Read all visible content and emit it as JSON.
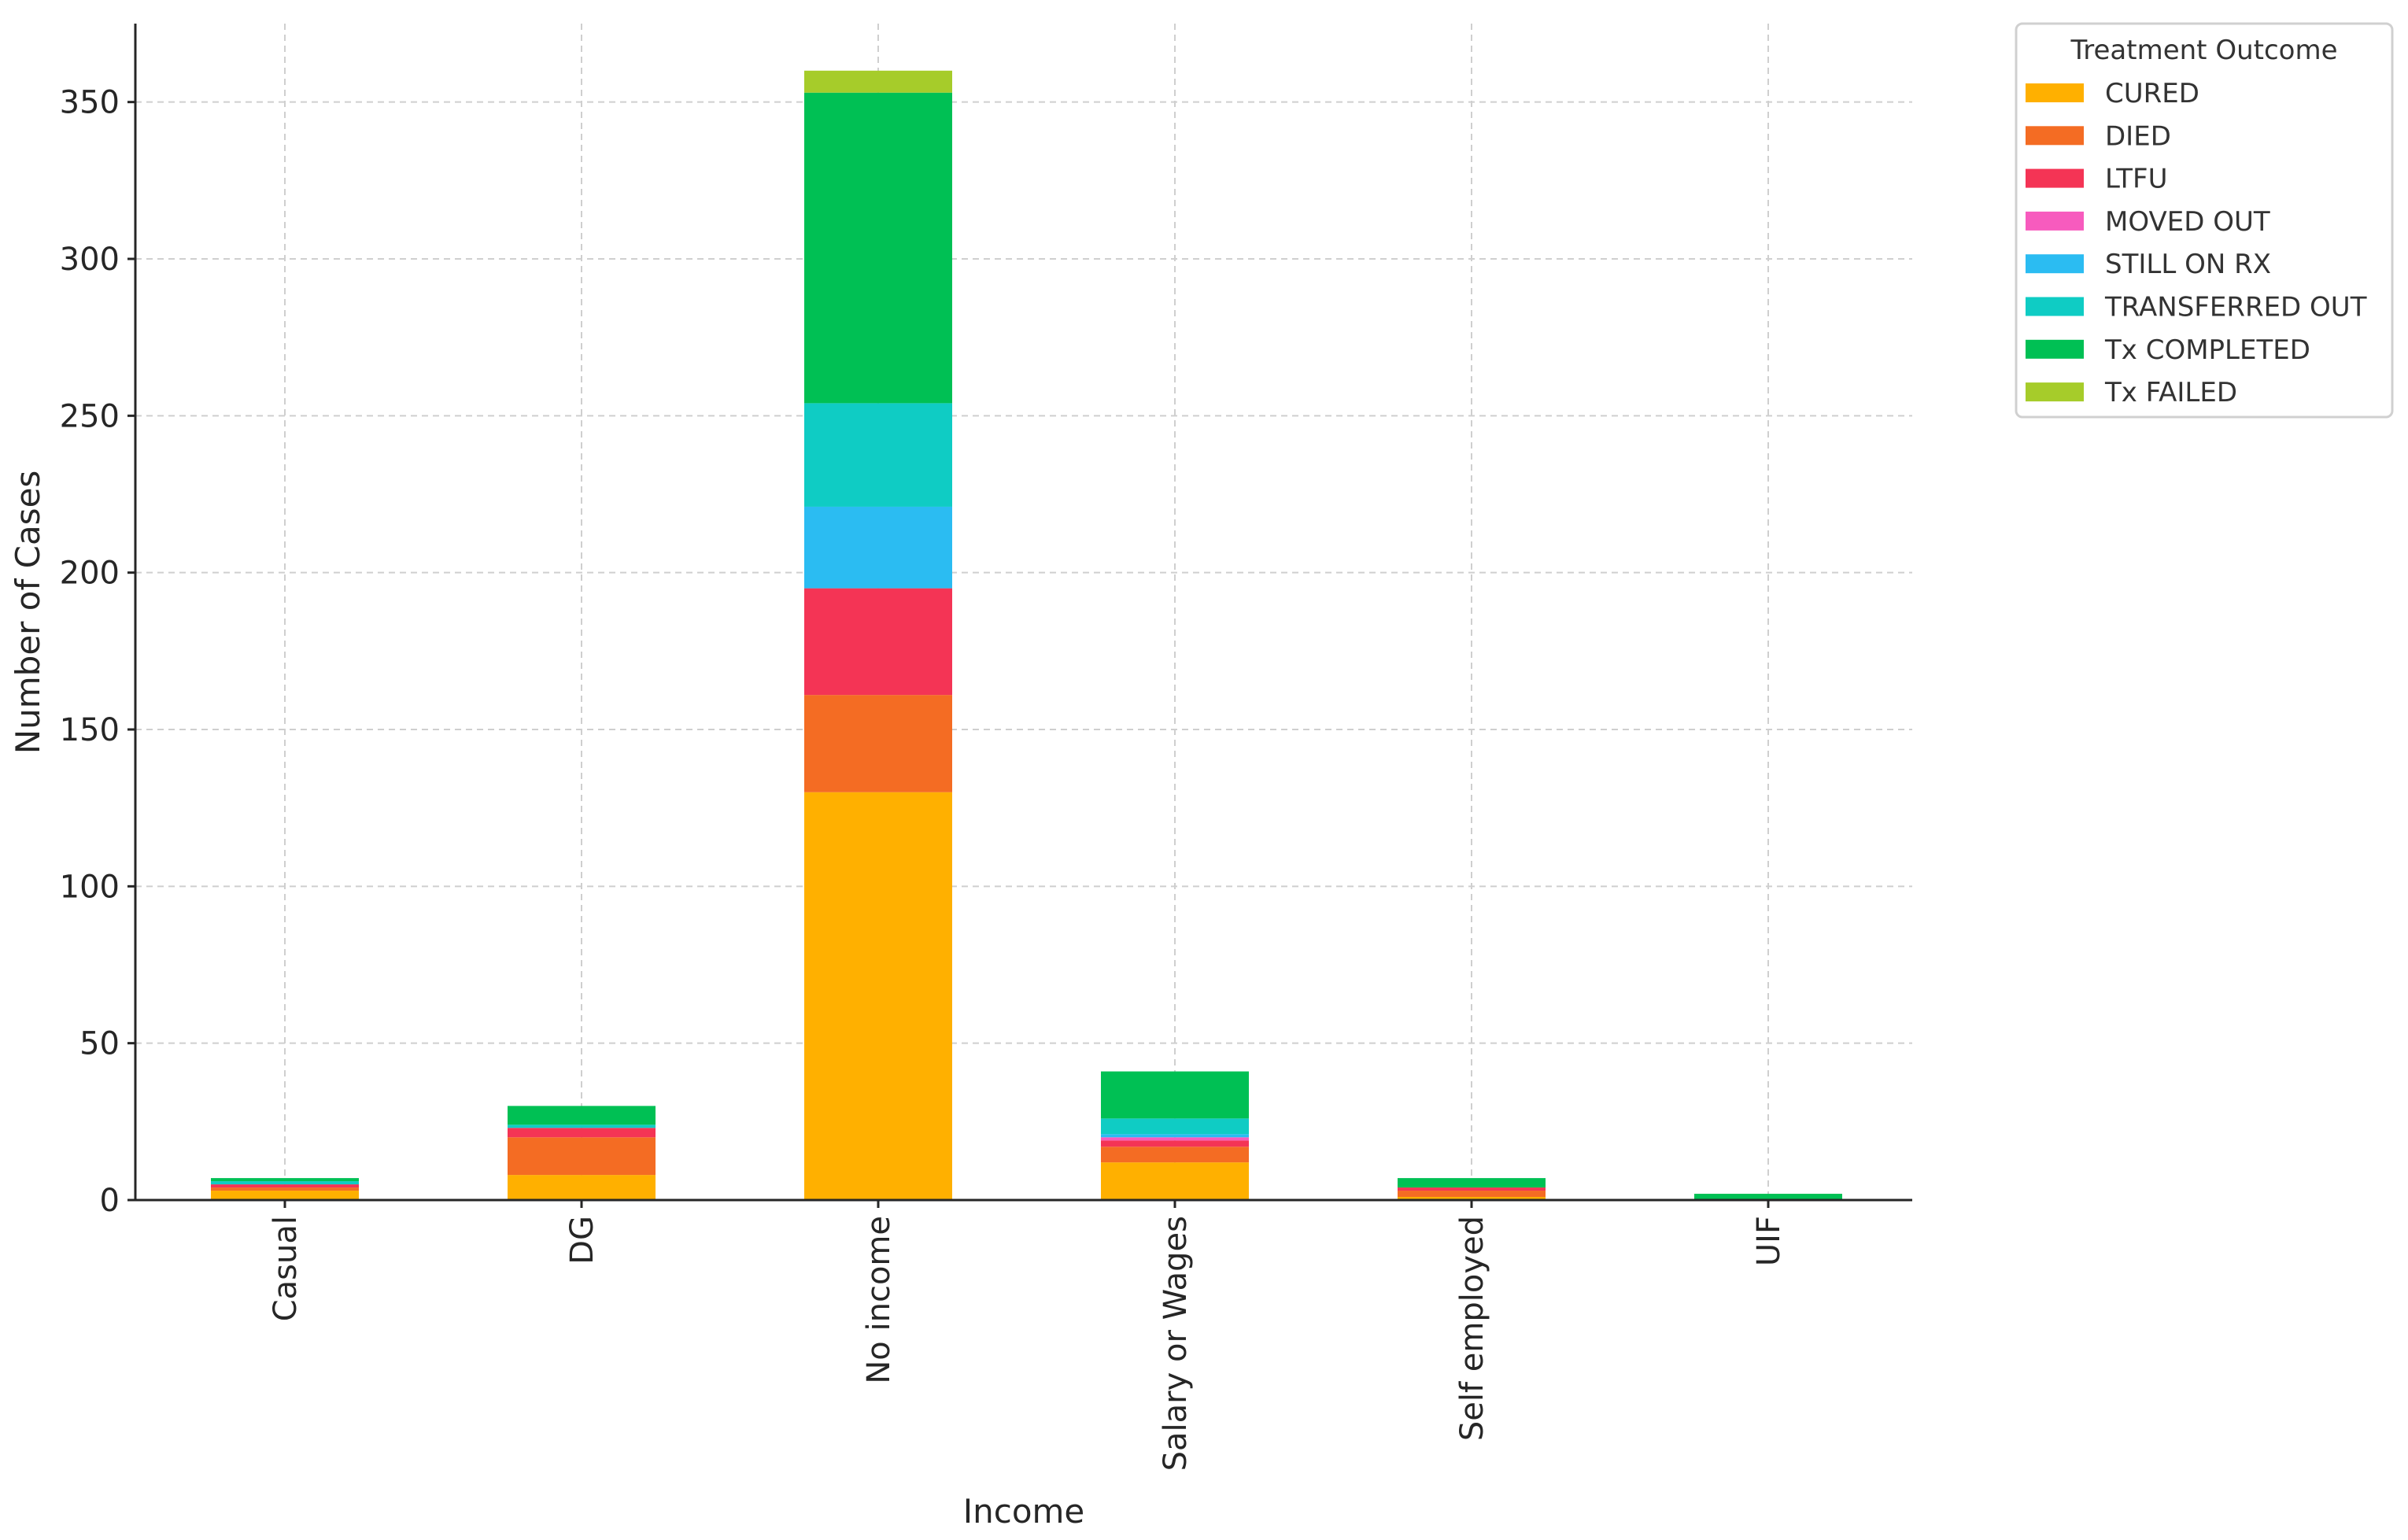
{
  "chart_data": {
    "type": "bar",
    "stacked": true,
    "xlabel": "Income",
    "ylabel": "Number of Cases",
    "ylim": [
      0,
      375
    ],
    "yticks": [
      0,
      50,
      100,
      150,
      200,
      250,
      300,
      350
    ],
    "grid": true,
    "legend_title": "Treatment Outcome",
    "legend_placement": "upper-right-outside",
    "categories": [
      "Casual",
      "DG",
      "No income",
      "Salary or Wages",
      "Self employed",
      "UIF"
    ],
    "series": [
      {
        "name": "CURED",
        "color": "#FFB000",
        "values": [
          3,
          8,
          130,
          12,
          1,
          0
        ]
      },
      {
        "name": "DIED",
        "color": "#F46C23",
        "values": [
          1,
          12,
          31,
          5,
          2,
          0
        ]
      },
      {
        "name": "LTFU",
        "color": "#F43455",
        "values": [
          1,
          3,
          34,
          2,
          1,
          0
        ]
      },
      {
        "name": "MOVED OUT",
        "color": "#F75BBE",
        "values": [
          0,
          0,
          0,
          1,
          0,
          0
        ]
      },
      {
        "name": "STILL ON RX",
        "color": "#2BBCF2",
        "values": [
          0,
          0,
          26,
          1,
          0,
          0
        ]
      },
      {
        "name": "TRANSFERRED OUT",
        "color": "#0FCCC4",
        "values": [
          1,
          1,
          33,
          5,
          0,
          0
        ]
      },
      {
        "name": "Tx COMPLETED",
        "color": "#00C054",
        "values": [
          1,
          6,
          99,
          15,
          3,
          2
        ]
      },
      {
        "name": "Tx FAILED",
        "color": "#A6CC2A",
        "values": [
          0,
          0,
          7,
          0,
          0,
          0
        ]
      }
    ]
  }
}
